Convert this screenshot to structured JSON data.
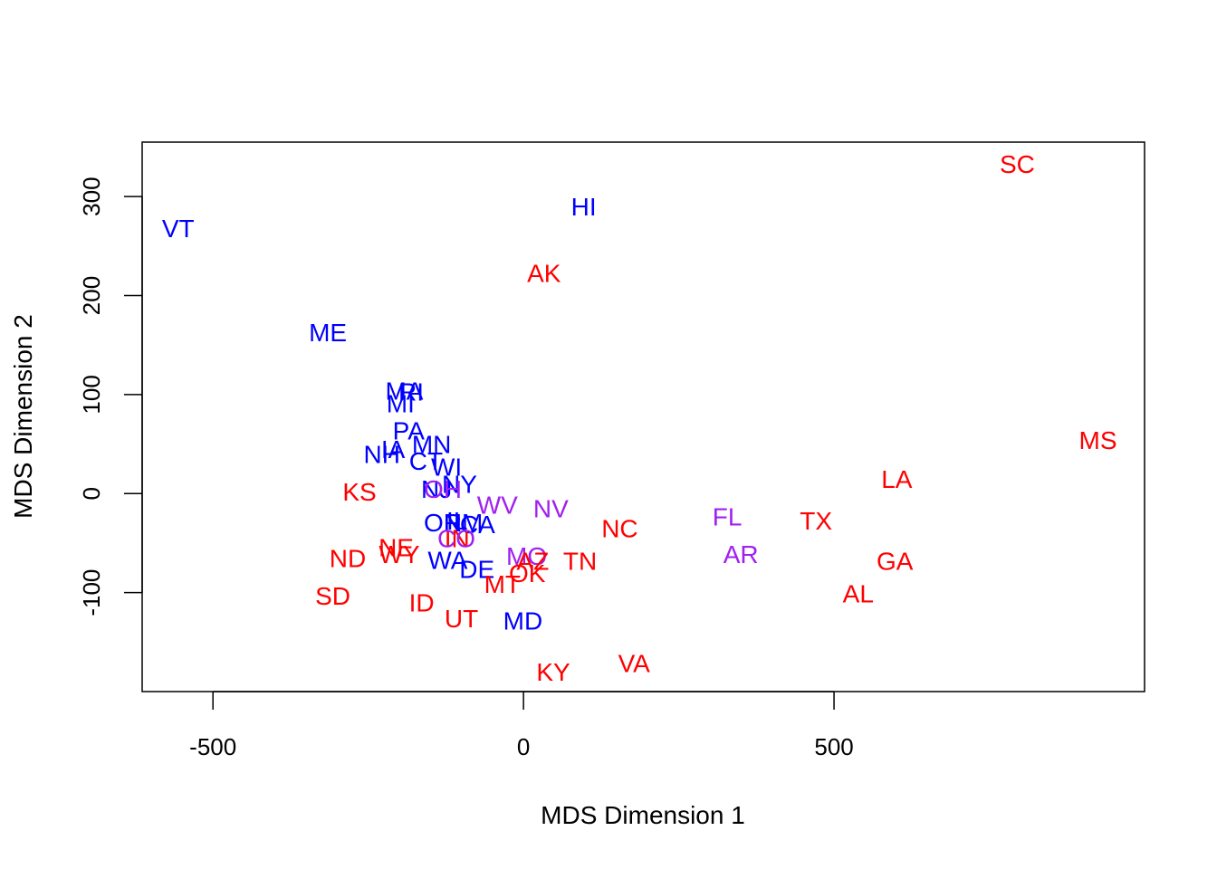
{
  "chart_data": {
    "type": "scatter",
    "title": "",
    "xlabel": "MDS Dimension 1",
    "ylabel": "MDS Dimension 2",
    "xlim": [
      -614,
      1000
    ],
    "ylim": [
      -200,
      355
    ],
    "x_ticks": [
      -500,
      0,
      500
    ],
    "x_tick_labels": [
      "-500",
      "0",
      "500"
    ],
    "y_ticks": [
      -100,
      0,
      100,
      200,
      300
    ],
    "y_tick_labels": [
      "-100",
      "0",
      "100",
      "200",
      "300"
    ],
    "grid": false,
    "legend": "none",
    "colors": {
      "red": "#ff0000",
      "blue": "#0000ff",
      "purple": "#a020f0"
    },
    "points": [
      {
        "label": "SC",
        "x": 795,
        "y": 333,
        "color": "red"
      },
      {
        "label": "HI",
        "x": 97,
        "y": 290,
        "color": "blue"
      },
      {
        "label": "VT",
        "x": -556,
        "y": 268,
        "color": "blue"
      },
      {
        "label": "AK",
        "x": 33,
        "y": 223,
        "color": "red"
      },
      {
        "label": "ME",
        "x": -315,
        "y": 163,
        "color": "blue"
      },
      {
        "label": "MA",
        "x": -192,
        "y": 104,
        "color": "blue"
      },
      {
        "label": "RI",
        "x": -181,
        "y": 103,
        "color": "blue"
      },
      {
        "label": "MI",
        "x": -198,
        "y": 91,
        "color": "blue"
      },
      {
        "label": "PA",
        "x": -185,
        "y": 64,
        "color": "blue"
      },
      {
        "label": "MN",
        "x": -148,
        "y": 50,
        "color": "blue"
      },
      {
        "label": "IA",
        "x": -210,
        "y": 45,
        "color": "blue"
      },
      {
        "label": "NH",
        "x": -228,
        "y": 40,
        "color": "blue"
      },
      {
        "label": "MS",
        "x": 925,
        "y": 54,
        "color": "red"
      },
      {
        "label": "CT",
        "x": -157,
        "y": 33,
        "color": "blue"
      },
      {
        "label": "WI",
        "x": -124,
        "y": 27,
        "color": "blue"
      },
      {
        "label": "LA",
        "x": 601,
        "y": 15,
        "color": "red"
      },
      {
        "label": "NY",
        "x": -103,
        "y": 10,
        "color": "blue"
      },
      {
        "label": "NJ",
        "x": -140,
        "y": 5,
        "color": "blue"
      },
      {
        "label": "OH",
        "x": -130,
        "y": 5,
        "color": "purple"
      },
      {
        "label": "KS",
        "x": -264,
        "y": 2,
        "color": "red"
      },
      {
        "label": "WV",
        "x": -42,
        "y": -11,
        "color": "purple"
      },
      {
        "label": "NV",
        "x": 44,
        "y": -15,
        "color": "purple"
      },
      {
        "label": "FL",
        "x": 328,
        "y": -23,
        "color": "purple"
      },
      {
        "label": "TX",
        "x": 471,
        "y": -27,
        "color": "red"
      },
      {
        "label": "IL",
        "x": -107,
        "y": -27,
        "color": "blue"
      },
      {
        "label": "OR",
        "x": -130,
        "y": -29,
        "color": "blue"
      },
      {
        "label": "NM",
        "x": -97,
        "y": -29,
        "color": "blue"
      },
      {
        "label": "CA",
        "x": -74,
        "y": -31,
        "color": "blue"
      },
      {
        "label": "NC",
        "x": 155,
        "y": -35,
        "color": "red"
      },
      {
        "label": "IN",
        "x": -107,
        "y": -45,
        "color": "red"
      },
      {
        "label": "CO",
        "x": -108,
        "y": -45,
        "color": "purple"
      },
      {
        "label": "NE",
        "x": -205,
        "y": -54,
        "color": "red"
      },
      {
        "label": "AR",
        "x": 350,
        "y": -61,
        "color": "purple"
      },
      {
        "label": "WY",
        "x": -200,
        "y": -61,
        "color": "red"
      },
      {
        "label": "WA",
        "x": -122,
        "y": -67,
        "color": "blue"
      },
      {
        "label": "ND",
        "x": -283,
        "y": -65,
        "color": "red"
      },
      {
        "label": "MO",
        "x": 5,
        "y": -63,
        "color": "purple"
      },
      {
        "label": "AZ",
        "x": 15,
        "y": -68,
        "color": "red"
      },
      {
        "label": "TN",
        "x": 91,
        "y": -68,
        "color": "red"
      },
      {
        "label": "GA",
        "x": 598,
        "y": -68,
        "color": "red"
      },
      {
        "label": "DE",
        "x": -75,
        "y": -76,
        "color": "blue"
      },
      {
        "label": "OK",
        "x": 6,
        "y": -80,
        "color": "red"
      },
      {
        "label": "MT",
        "x": -34,
        "y": -91,
        "color": "red"
      },
      {
        "label": "AL",
        "x": 539,
        "y": -101,
        "color": "red"
      },
      {
        "label": "SD",
        "x": -307,
        "y": -103,
        "color": "red"
      },
      {
        "label": "ID",
        "x": -164,
        "y": -110,
        "color": "red"
      },
      {
        "label": "UT",
        "x": -100,
        "y": -126,
        "color": "red"
      },
      {
        "label": "MD",
        "x": -1,
        "y": -128,
        "color": "blue"
      },
      {
        "label": "VA",
        "x": 178,
        "y": -171,
        "color": "red"
      },
      {
        "label": "KY",
        "x": 48,
        "y": -180,
        "color": "red"
      }
    ]
  }
}
